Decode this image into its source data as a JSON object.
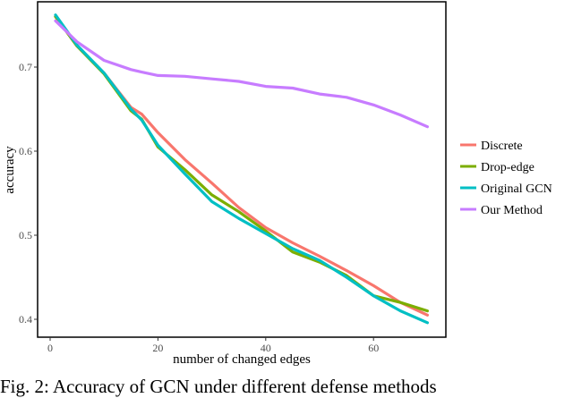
{
  "chart_data": {
    "type": "line",
    "title": "",
    "xlabel": "number of changed edges",
    "ylabel": "accuracy",
    "xlim": [
      -1.5,
      74
    ],
    "ylim": [
      0.38,
      0.777
    ],
    "xticks": [
      0,
      20,
      40,
      60
    ],
    "yticks": [
      0.4,
      0.5,
      0.6,
      0.7
    ],
    "grid": false,
    "legend_position": "right",
    "x": [
      1,
      5,
      10,
      15,
      17,
      20,
      25,
      30,
      35,
      40,
      45,
      50,
      55,
      60,
      65,
      70
    ],
    "series": [
      {
        "name": "Discrete",
        "color": "#F8766D",
        "values": [
          0.76,
          0.725,
          0.693,
          0.652,
          0.644,
          0.622,
          0.59,
          0.562,
          0.533,
          0.509,
          0.491,
          0.475,
          0.458,
          0.44,
          0.42,
          0.405
        ]
      },
      {
        "name": "Drop-edge",
        "color": "#7CAE00",
        "values": [
          0.76,
          0.725,
          0.692,
          0.648,
          0.638,
          0.605,
          0.578,
          0.548,
          0.528,
          0.505,
          0.48,
          0.468,
          0.452,
          0.428,
          0.42,
          0.41
        ]
      },
      {
        "name": "Original GCN",
        "color": "#00BFC4",
        "values": [
          0.762,
          0.726,
          0.693,
          0.65,
          0.637,
          0.607,
          0.573,
          0.54,
          0.52,
          0.502,
          0.484,
          0.47,
          0.45,
          0.428,
          0.41,
          0.396
        ]
      },
      {
        "name": "Our Method",
        "color": "#C77CFF",
        "values": [
          0.755,
          0.73,
          0.708,
          0.697,
          0.694,
          0.69,
          0.689,
          0.686,
          0.683,
          0.677,
          0.675,
          0.668,
          0.664,
          0.655,
          0.643,
          0.629
        ]
      }
    ]
  },
  "figure": {
    "caption": "Fig. 2: Accuracy of GCN under different defense methods"
  }
}
